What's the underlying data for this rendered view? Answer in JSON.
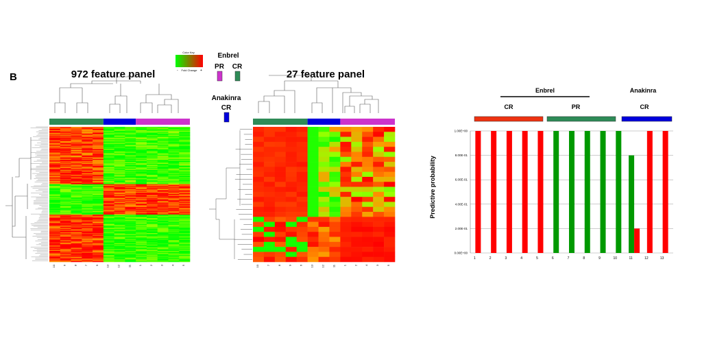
{
  "panel_letter": "B",
  "color_key": {
    "title": "Color Key",
    "low": "-",
    "high": "+",
    "sublabel": "Fold Change"
  },
  "legend": {
    "enbrel": "Enbrel",
    "pr": "PR",
    "cr": "CR",
    "anakinra": "Anakinra",
    "anakinra_cr": "CR",
    "colors": {
      "pr": "#cc33cc",
      "cr_enbrel": "#2e8b57",
      "cr_anakinra": "#0000dd"
    }
  },
  "heatmaps": [
    {
      "title": "972 feature panel",
      "col_labels": [
        "10",
        "6",
        "8",
        "7",
        "9",
        "13",
        "12",
        "11",
        "1",
        "2",
        "3",
        "4",
        "5"
      ],
      "group_colors": [
        "#2e8b57",
        "#0000dd",
        "#cc33cc"
      ],
      "group_sizes": [
        5,
        3,
        5
      ]
    },
    {
      "title": "27 feature panel",
      "col_labels": [
        "10",
        "7",
        "8",
        "9",
        "6",
        "13",
        "12",
        "11",
        "1",
        "2",
        "4",
        "3",
        "5"
      ],
      "group_colors": [
        "#2e8b57",
        "#0000dd",
        "#cc33cc"
      ],
      "group_sizes": [
        5,
        3,
        5
      ]
    }
  ],
  "chart_data": {
    "type": "bar",
    "ylabel": "Predictive probability",
    "xlabel": "",
    "ylim": [
      0,
      1
    ],
    "yticks": [
      "0.00E+00",
      "2.00E-01",
      "4.00E-01",
      "6.00E-01",
      "8.00E-01",
      "1.00E+00"
    ],
    "categories": [
      "1",
      "2",
      "3",
      "4",
      "5",
      "6",
      "7",
      "8",
      "9",
      "10",
      "11",
      "12",
      "13"
    ],
    "series": [
      {
        "color": "#ff0000",
        "values": [
          1,
          1,
          1,
          1,
          1,
          0,
          0,
          0,
          0,
          0,
          0.2,
          1,
          1
        ]
      },
      {
        "color": "#009900",
        "values": [
          0,
          0,
          0,
          0,
          0,
          1,
          1,
          1,
          1,
          1,
          0.8,
          0,
          0
        ]
      }
    ],
    "group_labels": {
      "top": [
        {
          "text": "Enbrel"
        },
        {
          "text": "Anakinra"
        }
      ],
      "sub": [
        {
          "text": "CR",
          "color": "#ee3311"
        },
        {
          "text": "PR",
          "color": "#2e8b57"
        },
        {
          "text": "CR",
          "color": "#0000dd"
        }
      ]
    }
  }
}
